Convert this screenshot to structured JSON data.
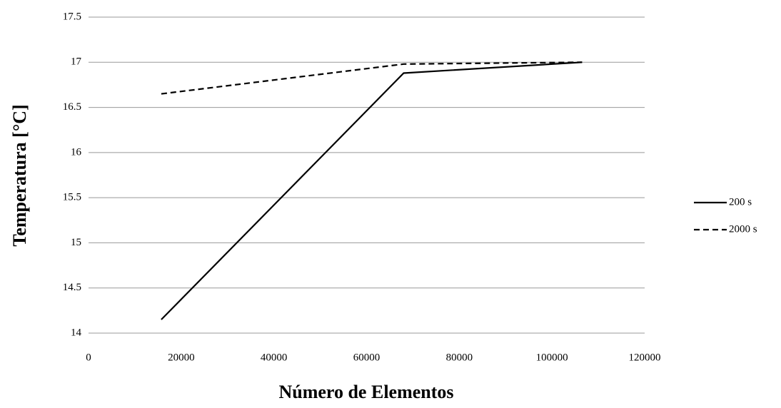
{
  "chart_data": {
    "type": "line",
    "xlabel": "Número de Elementos",
    "ylabel": "Temperatura [°C]",
    "x": [
      15700,
      68000,
      106500
    ],
    "series": [
      {
        "name": "200 s",
        "color": "#000000",
        "dash": "solid",
        "values": [
          14.15,
          16.88,
          17.0
        ]
      },
      {
        "name": "2000 s",
        "color": "#000000",
        "dash": "dashed",
        "values": [
          16.65,
          16.98,
          17.0
        ]
      }
    ],
    "xlim": [
      0,
      120000
    ],
    "xticks": [
      0,
      20000,
      40000,
      60000,
      80000,
      100000,
      120000
    ],
    "ylim": [
      14,
      17.5
    ],
    "yticks": [
      14,
      14.5,
      15,
      15.5,
      16,
      16.5,
      17,
      17.5
    ],
    "grid": true,
    "legend": "right"
  }
}
